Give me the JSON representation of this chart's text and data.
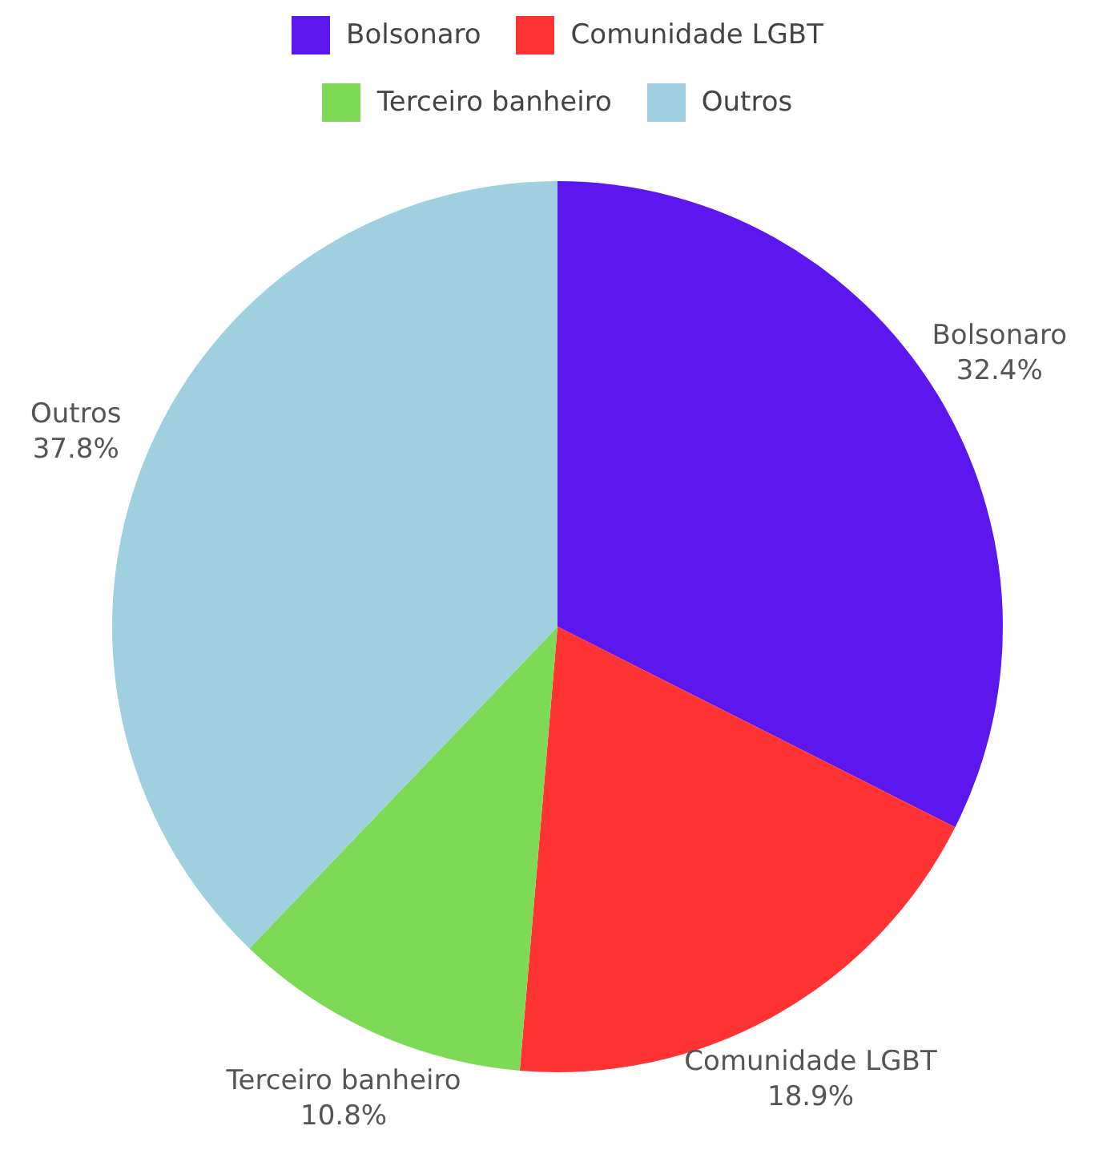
{
  "chart_data": {
    "type": "pie",
    "categories": [
      "Bolsonaro",
      "Comunidade LGBT",
      "Terceiro banheiro",
      "Outros"
    ],
    "values": [
      32.4,
      18.9,
      10.8,
      37.8
    ],
    "value_labels": [
      "32.4%",
      "18.9%",
      "10.8%",
      "37.8%"
    ],
    "colors": [
      "#5b17ee",
      "#ff3333",
      "#7ed957",
      "#a0cfe0"
    ],
    "legend": "top"
  }
}
